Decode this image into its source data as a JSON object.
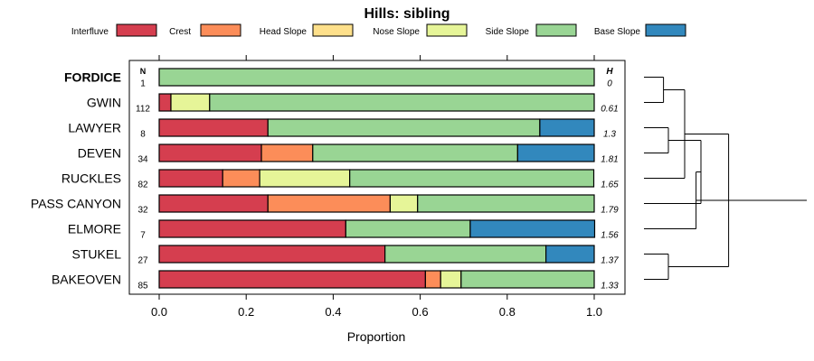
{
  "chart_data": {
    "type": "bar",
    "stacked": true,
    "orientation": "horizontal",
    "title": "Hills: sibling",
    "xlabel": "Proportion",
    "ylabel": "",
    "xlim": [
      0,
      1
    ],
    "xticks": [
      "0.0",
      "0.2",
      "0.4",
      "0.6",
      "0.8",
      "1.0"
    ],
    "n_header": "N",
    "h_header": "H",
    "legend": [
      {
        "name": "Interfluve",
        "color": "#d53e4f"
      },
      {
        "name": "Crest",
        "color": "#fc8d59"
      },
      {
        "name": "Head Slope",
        "color": "#fee08b"
      },
      {
        "name": "Nose Slope",
        "color": "#e6f598"
      },
      {
        "name": "Side Slope",
        "color": "#99d594"
      },
      {
        "name": "Base Slope",
        "color": "#3288bd"
      }
    ],
    "categories": [
      {
        "name": "FORDICE",
        "bold": true,
        "n": "1",
        "h": "0",
        "values": [
          0,
          0,
          0,
          0,
          1.0,
          0
        ]
      },
      {
        "name": "GWIN",
        "bold": false,
        "n": "112",
        "h": "0.61",
        "values": [
          0.027,
          0,
          0,
          0.089,
          0.884,
          0
        ]
      },
      {
        "name": "LAWYER",
        "bold": false,
        "n": "8",
        "h": "1.3",
        "values": [
          0.25,
          0,
          0,
          0,
          0.625,
          0.125
        ]
      },
      {
        "name": "DEVEN",
        "bold": false,
        "n": "34",
        "h": "1.81",
        "values": [
          0.235,
          0.118,
          0,
          0,
          0.471,
          0.176
        ]
      },
      {
        "name": "RUCKLES",
        "bold": false,
        "n": "82",
        "h": "1.65",
        "values": [
          0.146,
          0.085,
          0,
          0.207,
          0.561,
          0
        ]
      },
      {
        "name": "PASS CANYON",
        "bold": false,
        "n": "32",
        "h": "1.79",
        "values": [
          0.25,
          0.281,
          0,
          0.063,
          0.406,
          0
        ]
      },
      {
        "name": "ELMORE",
        "bold": false,
        "n": "7",
        "h": "1.56",
        "values": [
          0.429,
          0,
          0,
          0,
          0.286,
          0.286
        ]
      },
      {
        "name": "STUKEL",
        "bold": false,
        "n": "27",
        "h": "1.37",
        "values": [
          0.519,
          0,
          0,
          0,
          0.37,
          0.111
        ]
      },
      {
        "name": "BAKEOVEN",
        "bold": false,
        "n": "85",
        "h": "1.33",
        "values": [
          0.612,
          0.035,
          0,
          0.047,
          0.306,
          0
        ]
      }
    ],
    "dendrogram": [
      {
        "a": 0,
        "b": 1,
        "height": 0.12
      },
      {
        "a": 2,
        "b": 3,
        "height": 0.15
      },
      {
        "a": 9,
        "b": 4,
        "height": 0.25
      },
      {
        "a": 10,
        "b": 5,
        "height": 0.35
      },
      {
        "a": 7,
        "b": 8,
        "height": 0.15
      },
      {
        "a": 6,
        "b": 12,
        "height": 0.32
      },
      {
        "a": 11,
        "b": 13,
        "height": 0.52
      },
      {
        "a": 14,
        "b": 15,
        "height": 1.0
      }
    ]
  }
}
